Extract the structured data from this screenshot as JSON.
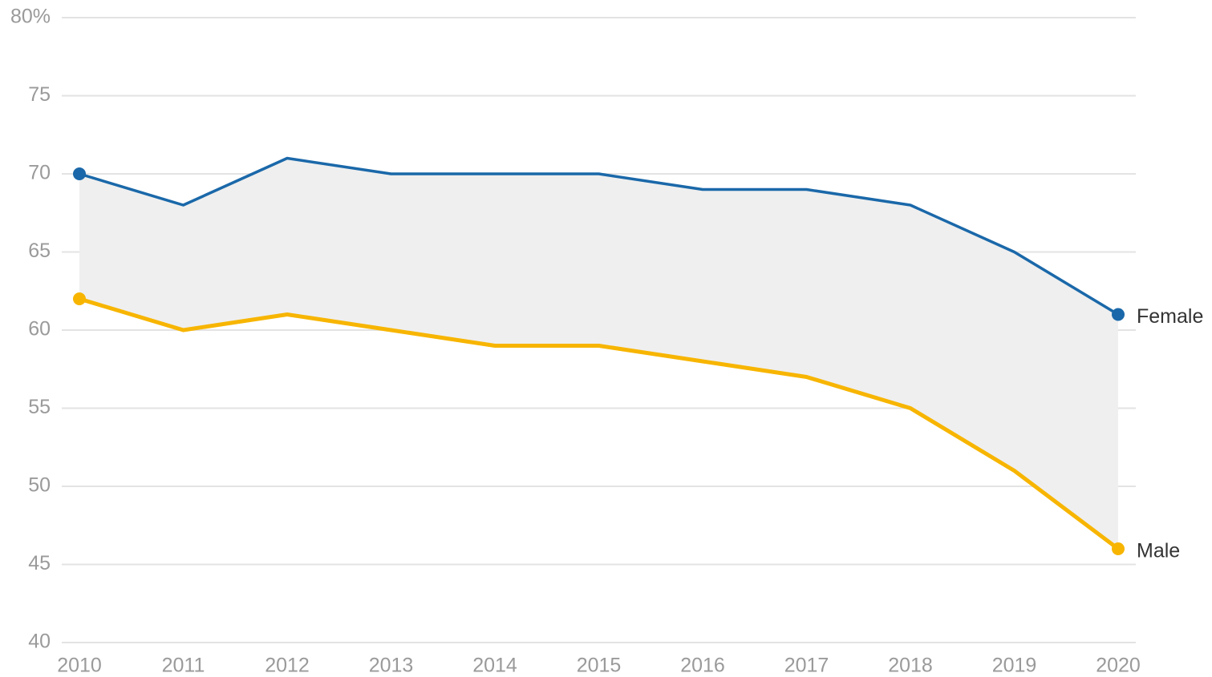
{
  "chart_data": {
    "type": "line",
    "categories": [
      "2010",
      "2011",
      "2012",
      "2013",
      "2014",
      "2015",
      "2016",
      "2017",
      "2018",
      "2019",
      "2020"
    ],
    "series": [
      {
        "name": "Female",
        "color": "#1a68a9",
        "values": [
          70,
          68,
          71,
          70,
          70,
          70,
          69,
          69,
          68,
          65,
          61
        ]
      },
      {
        "name": "Male",
        "color": "#f7b500",
        "values": [
          62,
          60,
          61,
          60,
          59,
          59,
          58,
          57,
          55,
          51,
          46
        ]
      }
    ],
    "ylim": [
      40,
      80
    ],
    "yticks": [
      40,
      45,
      50,
      55,
      60,
      65,
      70,
      75,
      {
        "value": 80,
        "label": "80%"
      }
    ],
    "grid": true,
    "band_color": "#efefef"
  }
}
